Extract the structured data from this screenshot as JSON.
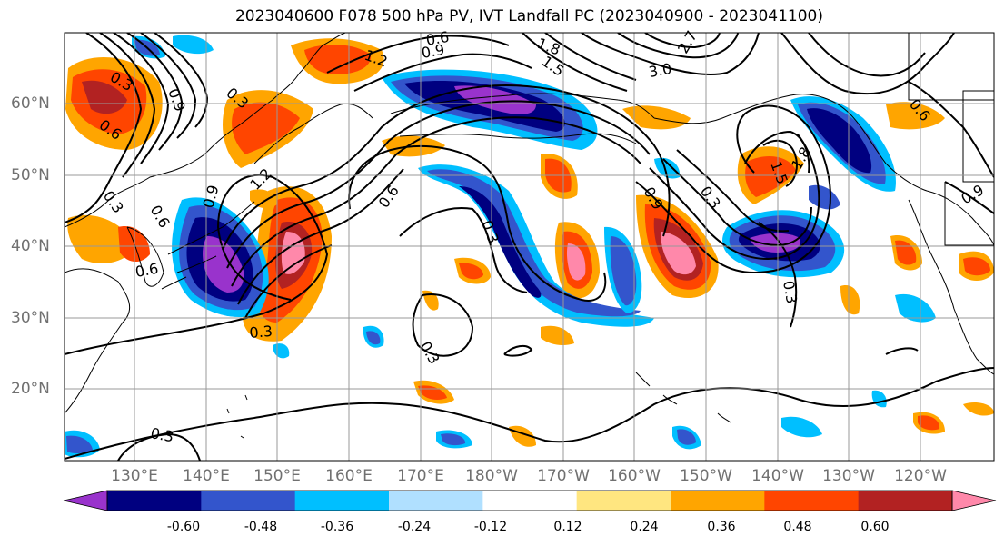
{
  "title": "2023040600 F078 500 hPa PV, IVT Landfall PC (2023040900 - 2023041100)",
  "lat_labels": [
    "60°N",
    "50°N",
    "40°N",
    "30°N",
    "20°N"
  ],
  "lon_labels": [
    "130°E",
    "140°E",
    "150°E",
    "160°E",
    "170°E",
    "180°W",
    "170°W",
    "160°W",
    "150°W",
    "140°W",
    "130°W",
    "120°W"
  ],
  "colorbar": {
    "colors": [
      "#9933cc",
      "#000080",
      "#3355cc",
      "#00bfff",
      "#b0e0ff",
      "#ffffff",
      "#ffe680",
      "#ffa500",
      "#ff4500",
      "#b22222",
      "#ff88aa"
    ],
    "tick_labels": [
      "-0.60",
      "-0.48",
      "-0.36",
      "-0.24",
      "-0.12",
      "0.12",
      "0.24",
      "0.36",
      "0.48",
      "0.60"
    ]
  },
  "contour_labels": [
    "0.3",
    "0.6",
    "0.9",
    "1.2",
    "1.5",
    "1.8",
    "2.7",
    "3.0",
    "0.3",
    "0.6",
    "0.9",
    "1.2",
    "0.9",
    "0.6",
    "0.3",
    "0.3",
    "0.6",
    "0.9",
    "0.3",
    "0.6",
    "0.9",
    "1.5",
    "1.8",
    "0.3",
    "0.6",
    "0.3",
    "0.3",
    "0.3"
  ],
  "colors": {
    "contour": "#000000",
    "grid": "#999999",
    "coast": "#000000",
    "axis_label": "#707070"
  }
}
